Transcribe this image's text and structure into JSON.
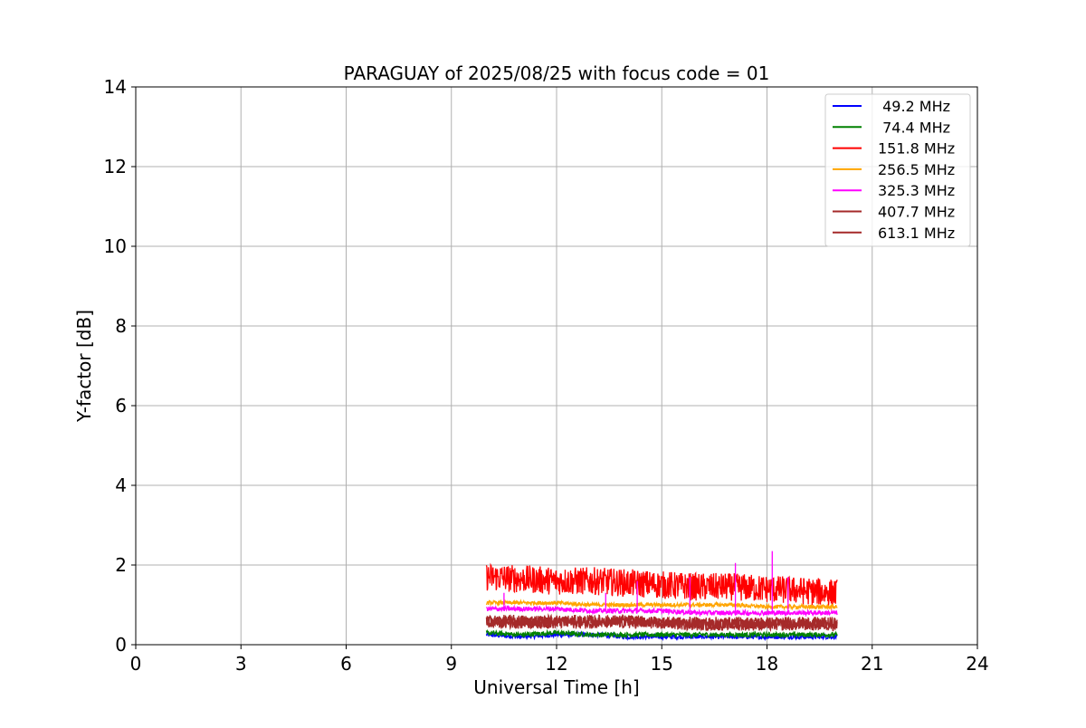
{
  "chart_data": {
    "type": "line",
    "title": "PARAGUAY of 2025/08/25 with focus code = 01",
    "xlabel": "Universal Time [h]",
    "ylabel": "Y-factor [dB]",
    "xlim": [
      0,
      24
    ],
    "ylim": [
      0,
      14
    ],
    "xticks": [
      0,
      3,
      6,
      9,
      12,
      15,
      18,
      21,
      24
    ],
    "yticks": [
      0,
      2,
      4,
      6,
      8,
      10,
      12,
      14
    ],
    "grid": true,
    "legend_position": "upper right",
    "data_range_x": [
      10.0,
      20.0
    ],
    "series": [
      {
        "name": " 49.2 MHz",
        "color": "#0000ff",
        "x": [
          10.0,
          11.0,
          12.0,
          13.0,
          14.0,
          15.0,
          16.0,
          17.0,
          18.0,
          19.0,
          20.0
        ],
        "y": [
          0.25,
          0.2,
          0.25,
          0.25,
          0.2,
          0.2,
          0.2,
          0.2,
          0.2,
          0.2,
          0.2
        ],
        "noise": 0.06
      },
      {
        "name": " 74.4 MHz",
        "color": "#008000",
        "x": [
          10.0,
          11.0,
          12.0,
          13.0,
          14.0,
          15.0,
          16.0,
          17.0,
          18.0,
          19.0,
          20.0
        ],
        "y": [
          0.3,
          0.25,
          0.3,
          0.25,
          0.25,
          0.25,
          0.25,
          0.25,
          0.25,
          0.25,
          0.25
        ],
        "noise": 0.06
      },
      {
        "name": "151.8 MHz",
        "color": "#ff0000",
        "x": [
          10.0,
          11.0,
          12.0,
          13.0,
          14.0,
          15.0,
          16.0,
          17.0,
          18.0,
          19.0,
          20.0
        ],
        "y": [
          1.7,
          1.65,
          1.6,
          1.6,
          1.55,
          1.5,
          1.45,
          1.45,
          1.4,
          1.35,
          1.3
        ],
        "noise": 0.35
      },
      {
        "name": "256.5 MHz",
        "color": "#ffa500",
        "x": [
          10.0,
          11.0,
          12.0,
          13.0,
          14.0,
          15.0,
          16.0,
          17.0,
          18.0,
          19.0,
          20.0
        ],
        "y": [
          1.05,
          1.05,
          1.05,
          1.0,
          1.0,
          1.0,
          1.0,
          1.0,
          0.95,
          0.95,
          0.95
        ],
        "noise": 0.05
      },
      {
        "name": "325.3 MHz",
        "color": "#ff00ff",
        "x": [
          10.0,
          11.0,
          12.0,
          13.0,
          14.0,
          15.0,
          16.0,
          17.0,
          18.0,
          19.0,
          20.0
        ],
        "y": [
          0.9,
          0.9,
          0.9,
          0.85,
          0.85,
          0.85,
          0.8,
          0.8,
          0.8,
          0.8,
          0.8
        ],
        "noise": 0.06,
        "spikes": [
          [
            10.5,
            1.3
          ],
          [
            14.3,
            1.6
          ],
          [
            15.8,
            1.7
          ],
          [
            17.1,
            2.05
          ],
          [
            18.15,
            2.35
          ],
          [
            18.6,
            1.7
          ],
          [
            13.4,
            1.3
          ]
        ]
      },
      {
        "name": "407.7 MHz",
        "color": "#a52a2a",
        "x": [
          10.0,
          11.0,
          12.0,
          13.0,
          14.0,
          15.0,
          16.0,
          17.0,
          18.0,
          19.0,
          20.0
        ],
        "y": [
          0.6,
          0.6,
          0.6,
          0.6,
          0.6,
          0.55,
          0.55,
          0.55,
          0.55,
          0.55,
          0.55
        ],
        "noise": 0.15
      },
      {
        "name": "613.1 MHz",
        "color": "#a52a2a",
        "x": [
          10.0,
          11.0,
          12.0,
          13.0,
          14.0,
          15.0,
          16.0,
          17.0,
          18.0,
          19.0,
          20.0
        ],
        "y": [
          0.55,
          0.55,
          0.55,
          0.55,
          0.55,
          0.55,
          0.5,
          0.5,
          0.5,
          0.5,
          0.5
        ],
        "noise": 0.15
      }
    ]
  }
}
